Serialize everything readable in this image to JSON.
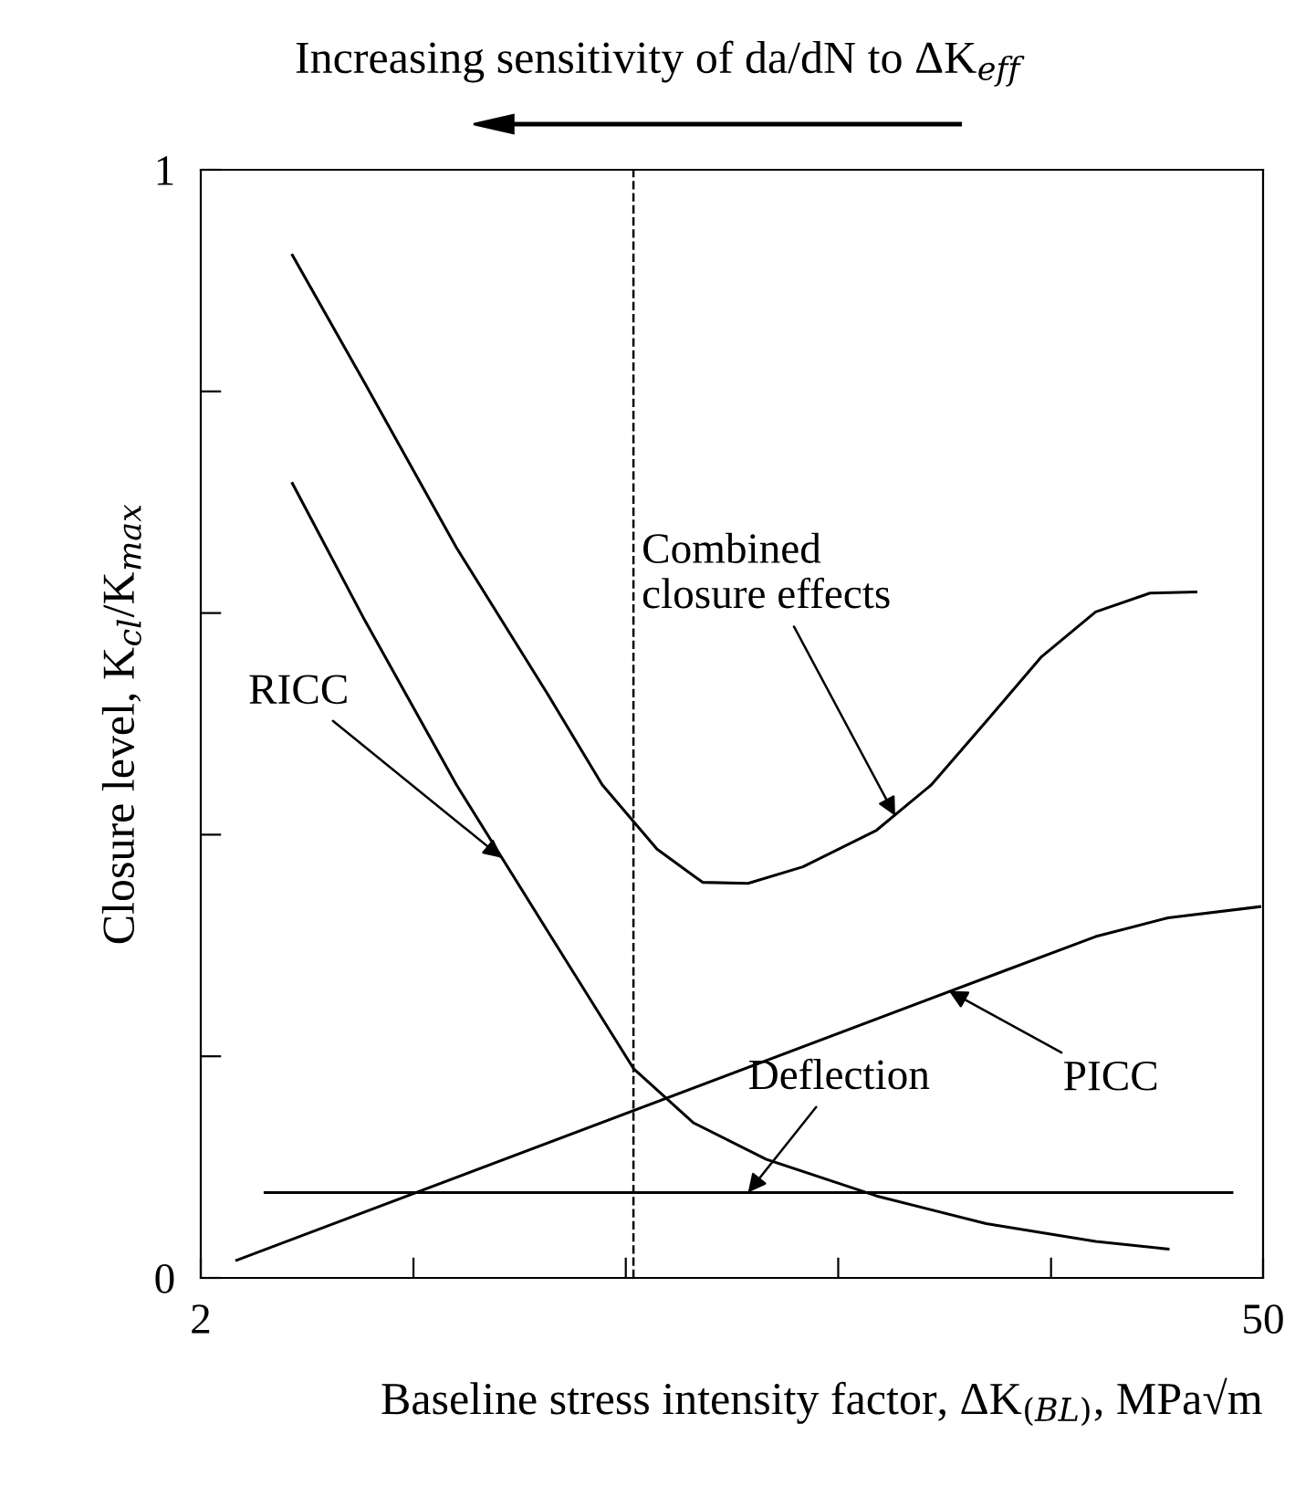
{
  "chart_data": {
    "type": "line",
    "title": "Increasing sensitivity of da/dN to ΔK$_{eff}$",
    "xlabel": "Baseline stress intensity factor, ΔK$_{(BL)}$, MPa√m",
    "ylabel": "Closure level, K$_{cl}$/K$_{max}$",
    "log": "x",
    "xlim": [
      2,
      50
    ],
    "ylim": [
      0,
      1
    ],
    "xticks": [
      2,
      {
        "value": 3.81,
        "label": null
      },
      {
        "value": 7.25,
        "label": null
      },
      {
        "value": 13.8,
        "label": null
      },
      {
        "value": 26.3,
        "label": null
      },
      50
    ],
    "yticks": [
      0,
      {
        "value": 0.2,
        "label": null
      },
      {
        "value": 0.4,
        "label": null
      },
      {
        "value": 0.6,
        "label": null
      },
      {
        "value": 0.8,
        "label": null
      },
      1
    ],
    "grid": false,
    "legend": false,
    "line_style": "solid",
    "series": [
      {
        "color": "#000000",
        "x": [
          2.64,
          3.29,
          4.34,
          5.72,
          6.75,
          7.97,
          9.15,
          10.5,
          12.4,
          15.5,
          18.3,
          21.6,
          25.5,
          30.1,
          35.5,
          40.8
        ],
        "values": [
          0.923,
          0.807,
          0.659,
          0.527,
          0.445,
          0.387,
          0.357,
          0.356,
          0.371,
          0.404,
          0.445,
          0.502,
          0.56,
          0.601,
          0.618,
          0.619
        ]
      },
      {
        "color": "#000000",
        "x": [
          2.64,
          3.29,
          4.34,
          5.72,
          7.42,
          8.9,
          11.1,
          15.5,
          21.6,
          30.1,
          37.5
        ],
        "values": [
          0.717,
          0.593,
          0.445,
          0.313,
          0.189,
          0.14,
          0.107,
          0.074,
          0.049,
          0.033,
          0.026
        ]
      },
      {
        "color": "#000000",
        "x": [
          2.23,
          22.8,
          30.1,
          37.5,
          49.5
        ],
        "values": [
          0.016,
          0.277,
          0.308,
          0.325,
          0.335
        ]
      },
      {
        "color": "#000000",
        "x": [
          2.43,
          45.5
        ],
        "values": [
          0.077,
          0.077
        ]
      }
    ],
    "ref_lines": [
      {
        "axis": "x",
        "value": 7.42,
        "line_style": "dashed",
        "color": "#000000"
      }
    ],
    "annotations": [
      {
        "text": "Combined\nclosure effects",
        "x": 16.4,
        "y": 0.417
      },
      {
        "text": "RICC",
        "x": 4.98,
        "y": 0.379
      },
      {
        "text": "PICC",
        "x": 19.3,
        "y": 0.259
      },
      {
        "text": "Deflection",
        "x": 10.5,
        "y": 0.077
      }
    ]
  }
}
